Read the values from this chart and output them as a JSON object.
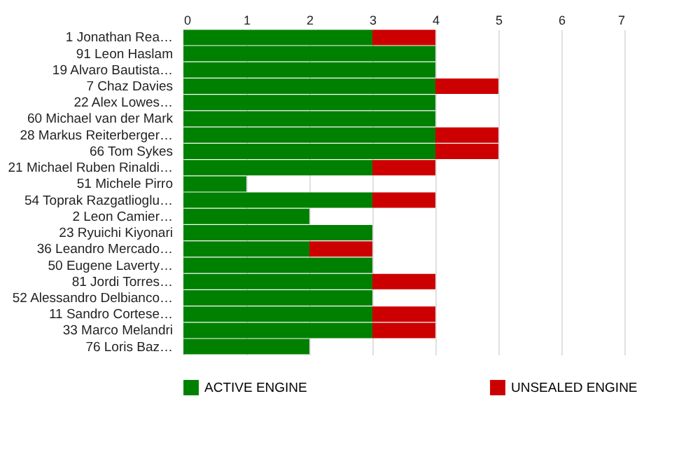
{
  "chart_data": {
    "type": "bar",
    "orientation": "horizontal",
    "stacked": true,
    "categories": [
      "1 Jonathan Rea…",
      "91 Leon Haslam",
      "19 Alvaro Bautista…",
      "7 Chaz Davies",
      "22 Alex Lowes…",
      "60 Michael van der Mark",
      "28 Markus Reiterberger…",
      "66 Tom Sykes",
      "21 Michael Ruben Rinaldi…",
      "51 Michele Pirro",
      "54 Toprak Razgatlioglu…",
      "2 Leon Camier…",
      "23 Ryuichi Kiyonari",
      "36 Leandro Mercado…",
      "50 Eugene Laverty…",
      "81 Jordi Torres…",
      "52 Alessandro Delbianco…",
      "11 Sandro Cortese…",
      "33 Marco Melandri",
      "76 Loris Baz…"
    ],
    "series": [
      {
        "name": "ACTIVE ENGINE",
        "color": "#008000",
        "values": [
          3,
          4,
          4,
          4,
          4,
          4,
          4,
          4,
          3,
          1,
          3,
          2,
          3,
          2,
          3,
          3,
          3,
          3,
          3,
          2
        ]
      },
      {
        "name": "UNSEALED ENGINE",
        "color": "#cc0000",
        "values": [
          1,
          0,
          0,
          1,
          0,
          0,
          1,
          1,
          1,
          0,
          1,
          0,
          0,
          1,
          0,
          1,
          0,
          1,
          1,
          0
        ]
      }
    ],
    "xlim": [
      0,
      7
    ],
    "xticks": [
      0,
      1,
      2,
      3,
      4,
      5,
      6,
      7
    ],
    "grid": "x",
    "legend": "bottom"
  }
}
